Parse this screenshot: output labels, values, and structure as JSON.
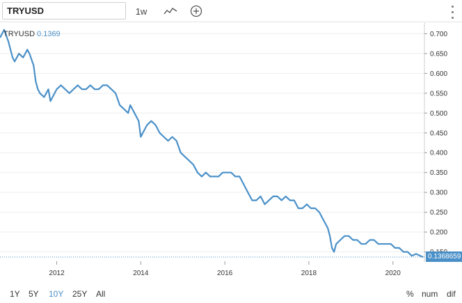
{
  "toolbar": {
    "symbol": "TRYUSD",
    "period": "1w",
    "icons": [
      "line-chart-icon",
      "add-circle-icon",
      "more-vertical-icon"
    ]
  },
  "legend": {
    "symbol": "TRYUSD",
    "value": "0.1369"
  },
  "last_price_tag": "0.1368659",
  "range_buttons": [
    "1Y",
    "5Y",
    "10Y",
    "25Y",
    "All"
  ],
  "active_range": "10Y",
  "display_modes": [
    "%",
    "num",
    "dif"
  ],
  "colors": {
    "line": "#4a90c8",
    "accent": "#4a90c8",
    "grid": "#eeeeee",
    "axis_text": "#333333"
  },
  "chart_data": {
    "type": "line",
    "title": "",
    "xlabel": "",
    "ylabel": "",
    "x_tick_labels": [
      "2012",
      "2014",
      "2016",
      "2018",
      "2020"
    ],
    "x_ticks": [
      2012,
      2014,
      2016,
      2018,
      2020
    ],
    "y_tick_labels": [
      "0.150",
      "0.200",
      "0.250",
      "0.300",
      "0.350",
      "0.400",
      "0.450",
      "0.500",
      "0.550",
      "0.600",
      "0.650",
      "0.700"
    ],
    "y_ticks": [
      0.15,
      0.2,
      0.25,
      0.3,
      0.35,
      0.4,
      0.45,
      0.5,
      0.55,
      0.6,
      0.65,
      0.7
    ],
    "xlim": [
      2010.65,
      2020.75
    ],
    "ylim": [
      0.13,
      0.72
    ],
    "series": [
      {
        "name": "TRYUSD",
        "x": [
          2010.65,
          2010.75,
          2010.85,
          2010.95,
          2011.0,
          2011.1,
          2011.2,
          2011.3,
          2011.35,
          2011.45,
          2011.5,
          2011.55,
          2011.6,
          2011.7,
          2011.8,
          2011.85,
          2011.9,
          2012.0,
          2012.1,
          2012.2,
          2012.3,
          2012.4,
          2012.5,
          2012.6,
          2012.7,
          2012.8,
          2012.9,
          2013.0,
          2013.1,
          2013.2,
          2013.3,
          2013.4,
          2013.5,
          2013.6,
          2013.7,
          2013.75,
          2013.85,
          2013.95,
          2014.0,
          2014.05,
          2014.15,
          2014.25,
          2014.35,
          2014.45,
          2014.55,
          2014.65,
          2014.75,
          2014.85,
          2014.95,
          2015.05,
          2015.15,
          2015.25,
          2015.35,
          2015.45,
          2015.55,
          2015.65,
          2015.75,
          2015.85,
          2015.95,
          2016.05,
          2016.15,
          2016.25,
          2016.35,
          2016.45,
          2016.55,
          2016.65,
          2016.75,
          2016.85,
          2016.95,
          2017.05,
          2017.15,
          2017.25,
          2017.35,
          2017.45,
          2017.55,
          2017.65,
          2017.75,
          2017.85,
          2017.95,
          2018.05,
          2018.15,
          2018.25,
          2018.35,
          2018.45,
          2018.5,
          2018.55,
          2018.6,
          2018.65,
          2018.75,
          2018.85,
          2018.95,
          2019.05,
          2019.15,
          2019.25,
          2019.35,
          2019.45,
          2019.55,
          2019.65,
          2019.75,
          2019.85,
          2019.95,
          2020.05,
          2020.15,
          2020.25,
          2020.35,
          2020.45,
          2020.55,
          2020.65,
          2020.72
        ],
        "y": [
          0.69,
          0.71,
          0.68,
          0.64,
          0.63,
          0.65,
          0.64,
          0.66,
          0.65,
          0.62,
          0.58,
          0.56,
          0.55,
          0.54,
          0.56,
          0.53,
          0.54,
          0.56,
          0.57,
          0.56,
          0.55,
          0.56,
          0.57,
          0.56,
          0.56,
          0.57,
          0.56,
          0.56,
          0.57,
          0.57,
          0.56,
          0.55,
          0.52,
          0.51,
          0.5,
          0.52,
          0.5,
          0.48,
          0.44,
          0.45,
          0.47,
          0.48,
          0.47,
          0.45,
          0.44,
          0.43,
          0.44,
          0.43,
          0.4,
          0.39,
          0.38,
          0.37,
          0.35,
          0.34,
          0.35,
          0.34,
          0.34,
          0.34,
          0.35,
          0.35,
          0.35,
          0.34,
          0.34,
          0.32,
          0.3,
          0.28,
          0.28,
          0.29,
          0.27,
          0.28,
          0.29,
          0.29,
          0.28,
          0.29,
          0.28,
          0.28,
          0.26,
          0.26,
          0.27,
          0.26,
          0.26,
          0.25,
          0.23,
          0.21,
          0.19,
          0.16,
          0.15,
          0.17,
          0.18,
          0.19,
          0.19,
          0.18,
          0.18,
          0.17,
          0.17,
          0.18,
          0.18,
          0.17,
          0.17,
          0.17,
          0.17,
          0.16,
          0.16,
          0.15,
          0.15,
          0.14,
          0.145,
          0.14,
          0.137
        ]
      }
    ]
  }
}
